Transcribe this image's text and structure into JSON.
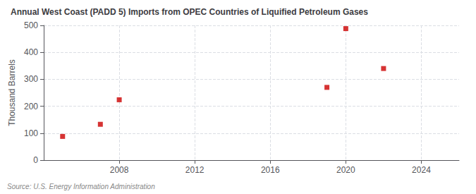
{
  "chart_data": {
    "type": "scatter",
    "title": "Annual West Coast (PADD 5) Imports from OPEC Countries of Liquified Petroleum Gases",
    "ylabel": "Thousand Barrels",
    "annotation": "Source: U.S. Energy Information Administration",
    "x": [
      2005,
      2007,
      2008,
      2019,
      2020,
      2022
    ],
    "values": [
      88,
      133,
      224,
      270,
      488,
      340
    ],
    "color": "#cc0000",
    "marker": "square",
    "xlim": [
      2004,
      2026
    ],
    "xticks": [
      2008,
      2012,
      2016,
      2020,
      2024
    ],
    "ylim": [
      0,
      500
    ],
    "yticks": [
      0,
      100,
      200,
      300,
      400,
      500
    ],
    "grid": true
  }
}
